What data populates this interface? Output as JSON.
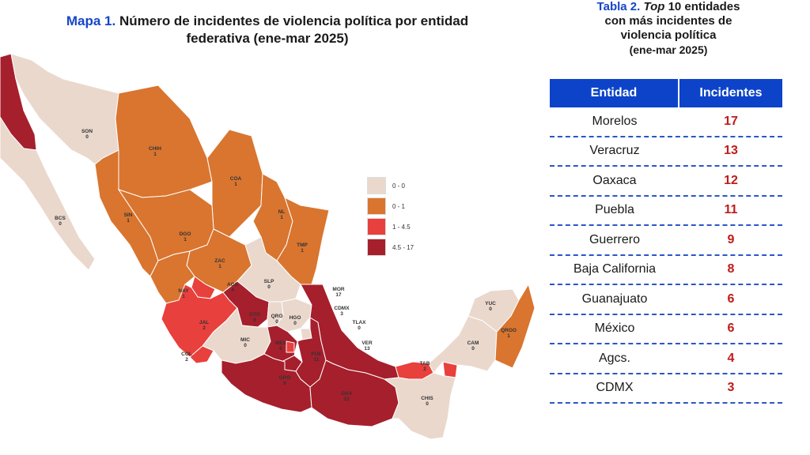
{
  "map_title": {
    "label": "Mapa 1.",
    "line1": "Número de incidentes de violencia política por entidad",
    "line2": "federativa (ene-mar 2025)"
  },
  "legend": [
    {
      "label": "0 - 0",
      "color": "#ead8cd"
    },
    {
      "label": "0 - 1",
      "color": "#d9752f"
    },
    {
      "label": "1 - 4.5",
      "color": "#e8403c"
    },
    {
      "label": "4.5 - 17",
      "color": "#a61f2c"
    }
  ],
  "states": {
    "SON": {
      "abbr": "SON",
      "value": "0"
    },
    "BCS": {
      "abbr": "BCS",
      "value": "0"
    },
    "CHIH": {
      "abbr": "CHIH",
      "value": "1"
    },
    "COA": {
      "abbr": "COA",
      "value": "1"
    },
    "NL": {
      "abbr": "NL",
      "value": "1"
    },
    "TMP": {
      "abbr": "TMP",
      "value": "1"
    },
    "SIN": {
      "abbr": "SIN",
      "value": "1"
    },
    "DGO": {
      "abbr": "DGO",
      "value": "1"
    },
    "ZAC": {
      "abbr": "ZAC",
      "value": "1"
    },
    "SLP": {
      "abbr": "SLP",
      "value": "0"
    },
    "NAY": {
      "abbr": "NAY",
      "value": "1"
    },
    "AGS": {
      "abbr": "AGS",
      "value": "4"
    },
    "JAL": {
      "abbr": "JAL",
      "value": "2"
    },
    "GTO": {
      "abbr": "GTO",
      "value": "6"
    },
    "QRO": {
      "abbr": "QRO",
      "value": "0"
    },
    "HGO": {
      "abbr": "HGO",
      "value": "0"
    },
    "MOR": {
      "abbr": "MOR",
      "value": "17"
    },
    "CDMX": {
      "abbr": "CDMX",
      "value": "3"
    },
    "TLAX": {
      "abbr": "TLAX",
      "value": "0"
    },
    "VER": {
      "abbr": "VER",
      "value": "13"
    },
    "MIC": {
      "abbr": "MIC",
      "value": "0"
    },
    "MEX": {
      "abbr": "MEX",
      "value": "6"
    },
    "PUE": {
      "abbr": "PUE",
      "value": "11"
    },
    "COL": {
      "abbr": "COL",
      "value": "2"
    },
    "GRO": {
      "abbr": "GRO",
      "value": "9"
    },
    "OAX": {
      "abbr": "OAX",
      "value": "12"
    },
    "TAB": {
      "abbr": "TAB",
      "value": "2"
    },
    "CHIS": {
      "abbr": "CHIS",
      "value": "0"
    },
    "CAM": {
      "abbr": "CAM",
      "value": "0"
    },
    "YUC": {
      "abbr": "YUC",
      "value": "0"
    },
    "QROO": {
      "abbr": "QROO",
      "value": "1"
    }
  },
  "table_title": {
    "label": "Tabla 2.",
    "top_word": "Top",
    "line1_rest": "10 entidades",
    "line2": "con más incidentes de",
    "line3": "violencia política",
    "line4": "(ene-mar 2025)"
  },
  "table": {
    "headers": [
      "Entidad",
      "Incidentes"
    ],
    "rows": [
      [
        "Morelos",
        "17"
      ],
      [
        "Veracruz",
        "13"
      ],
      [
        "Oaxaca",
        "12"
      ],
      [
        "Puebla",
        "11"
      ],
      [
        "Guerrero",
        "9"
      ],
      [
        "Baja California",
        "8"
      ],
      [
        "Guanajuato",
        "6"
      ],
      [
        "México",
        "6"
      ],
      [
        "Agcs.",
        "4"
      ],
      [
        "CDMX",
        "3"
      ]
    ]
  }
}
